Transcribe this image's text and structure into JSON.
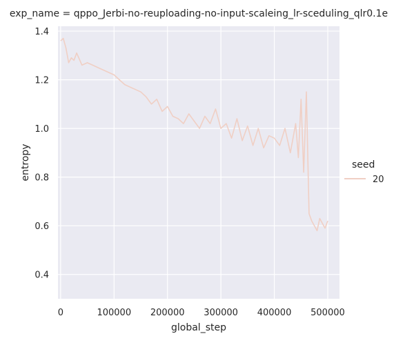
{
  "chart_data": {
    "type": "line",
    "title": "exp_name = qppo_Jerbi-no-reuploading-no-input-scaleing_lr-sceduling_qlr0.1e",
    "xlabel": "global_step",
    "ylabel": "entropy",
    "xlim": [
      -5000,
      522000
    ],
    "ylim": [
      0.3,
      1.42
    ],
    "x_ticks": [
      0,
      100000,
      200000,
      300000,
      400000,
      500000
    ],
    "x_tick_labels": [
      "0",
      "100000",
      "200000",
      "300000",
      "400000",
      "500000"
    ],
    "y_ticks": [
      0.4,
      0.6,
      0.8,
      1.0,
      1.2,
      1.4
    ],
    "y_tick_labels": [
      "0.4",
      "0.6",
      "0.8",
      "1.0",
      "1.2",
      "1.4"
    ],
    "grid": true,
    "background": "#eaeaf2",
    "legend": {
      "title": "seed",
      "placement": "right",
      "entries": [
        {
          "label": "20",
          "color": "#f0cfc4"
        }
      ]
    },
    "series": [
      {
        "name": "20",
        "color": "#f0cfc4",
        "x": [
          0,
          5000,
          10000,
          15000,
          20000,
          25000,
          30000,
          40000,
          50000,
          60000,
          70000,
          80000,
          90000,
          100000,
          110000,
          120000,
          130000,
          140000,
          150000,
          160000,
          170000,
          180000,
          190000,
          200000,
          210000,
          220000,
          230000,
          240000,
          250000,
          260000,
          270000,
          280000,
          290000,
          300000,
          310000,
          320000,
          330000,
          340000,
          350000,
          360000,
          370000,
          380000,
          390000,
          400000,
          410000,
          420000,
          430000,
          440000,
          445000,
          450000,
          455000,
          460000,
          465000,
          470000,
          475000,
          480000,
          485000,
          490000,
          495000,
          500000
        ],
        "y": [
          1.36,
          1.37,
          1.33,
          1.27,
          1.29,
          1.28,
          1.31,
          1.26,
          1.27,
          1.26,
          1.25,
          1.24,
          1.23,
          1.22,
          1.2,
          1.18,
          1.17,
          1.16,
          1.15,
          1.13,
          1.1,
          1.12,
          1.07,
          1.09,
          1.05,
          1.04,
          1.02,
          1.06,
          1.03,
          1.0,
          1.05,
          1.02,
          1.08,
          1.0,
          1.02,
          0.96,
          1.04,
          0.95,
          1.01,
          0.93,
          1.0,
          0.92,
          0.97,
          0.96,
          0.93,
          1.0,
          0.9,
          1.02,
          0.88,
          1.12,
          0.82,
          1.15,
          0.65,
          0.62,
          0.6,
          0.58,
          0.63,
          0.61,
          0.59,
          0.62
        ]
      }
    ]
  }
}
